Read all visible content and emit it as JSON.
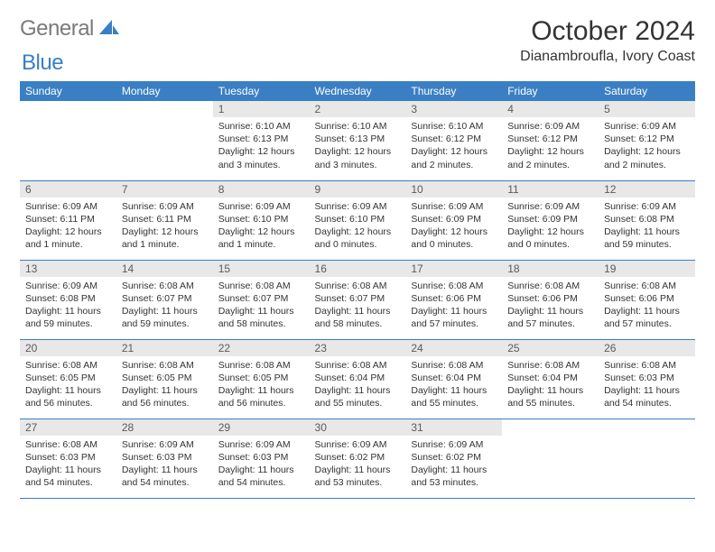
{
  "logo": {
    "text1": "General",
    "text2": "Blue"
  },
  "title": "October 2024",
  "location": "Dianambroufla, Ivory Coast",
  "day_headers": [
    "Sunday",
    "Monday",
    "Tuesday",
    "Wednesday",
    "Thursday",
    "Friday",
    "Saturday"
  ],
  "colors": {
    "header_bg": "#3a7fc4",
    "daynum_bg": "#e8e8e8",
    "rule": "#3a7fc4",
    "text": "#333333",
    "logo_gray": "#7a7a7a",
    "logo_blue": "#3a7fc4"
  },
  "weeks": [
    [
      {
        "n": "",
        "sunrise": "",
        "sunset": "",
        "daylight": ""
      },
      {
        "n": "",
        "sunrise": "",
        "sunset": "",
        "daylight": ""
      },
      {
        "n": "1",
        "sunrise": "Sunrise: 6:10 AM",
        "sunset": "Sunset: 6:13 PM",
        "daylight": "Daylight: 12 hours and 3 minutes."
      },
      {
        "n": "2",
        "sunrise": "Sunrise: 6:10 AM",
        "sunset": "Sunset: 6:13 PM",
        "daylight": "Daylight: 12 hours and 3 minutes."
      },
      {
        "n": "3",
        "sunrise": "Sunrise: 6:10 AM",
        "sunset": "Sunset: 6:12 PM",
        "daylight": "Daylight: 12 hours and 2 minutes."
      },
      {
        "n": "4",
        "sunrise": "Sunrise: 6:09 AM",
        "sunset": "Sunset: 6:12 PM",
        "daylight": "Daylight: 12 hours and 2 minutes."
      },
      {
        "n": "5",
        "sunrise": "Sunrise: 6:09 AM",
        "sunset": "Sunset: 6:12 PM",
        "daylight": "Daylight: 12 hours and 2 minutes."
      }
    ],
    [
      {
        "n": "6",
        "sunrise": "Sunrise: 6:09 AM",
        "sunset": "Sunset: 6:11 PM",
        "daylight": "Daylight: 12 hours and 1 minute."
      },
      {
        "n": "7",
        "sunrise": "Sunrise: 6:09 AM",
        "sunset": "Sunset: 6:11 PM",
        "daylight": "Daylight: 12 hours and 1 minute."
      },
      {
        "n": "8",
        "sunrise": "Sunrise: 6:09 AM",
        "sunset": "Sunset: 6:10 PM",
        "daylight": "Daylight: 12 hours and 1 minute."
      },
      {
        "n": "9",
        "sunrise": "Sunrise: 6:09 AM",
        "sunset": "Sunset: 6:10 PM",
        "daylight": "Daylight: 12 hours and 0 minutes."
      },
      {
        "n": "10",
        "sunrise": "Sunrise: 6:09 AM",
        "sunset": "Sunset: 6:09 PM",
        "daylight": "Daylight: 12 hours and 0 minutes."
      },
      {
        "n": "11",
        "sunrise": "Sunrise: 6:09 AM",
        "sunset": "Sunset: 6:09 PM",
        "daylight": "Daylight: 12 hours and 0 minutes."
      },
      {
        "n": "12",
        "sunrise": "Sunrise: 6:09 AM",
        "sunset": "Sunset: 6:08 PM",
        "daylight": "Daylight: 11 hours and 59 minutes."
      }
    ],
    [
      {
        "n": "13",
        "sunrise": "Sunrise: 6:09 AM",
        "sunset": "Sunset: 6:08 PM",
        "daylight": "Daylight: 11 hours and 59 minutes."
      },
      {
        "n": "14",
        "sunrise": "Sunrise: 6:08 AM",
        "sunset": "Sunset: 6:07 PM",
        "daylight": "Daylight: 11 hours and 59 minutes."
      },
      {
        "n": "15",
        "sunrise": "Sunrise: 6:08 AM",
        "sunset": "Sunset: 6:07 PM",
        "daylight": "Daylight: 11 hours and 58 minutes."
      },
      {
        "n": "16",
        "sunrise": "Sunrise: 6:08 AM",
        "sunset": "Sunset: 6:07 PM",
        "daylight": "Daylight: 11 hours and 58 minutes."
      },
      {
        "n": "17",
        "sunrise": "Sunrise: 6:08 AM",
        "sunset": "Sunset: 6:06 PM",
        "daylight": "Daylight: 11 hours and 57 minutes."
      },
      {
        "n": "18",
        "sunrise": "Sunrise: 6:08 AM",
        "sunset": "Sunset: 6:06 PM",
        "daylight": "Daylight: 11 hours and 57 minutes."
      },
      {
        "n": "19",
        "sunrise": "Sunrise: 6:08 AM",
        "sunset": "Sunset: 6:06 PM",
        "daylight": "Daylight: 11 hours and 57 minutes."
      }
    ],
    [
      {
        "n": "20",
        "sunrise": "Sunrise: 6:08 AM",
        "sunset": "Sunset: 6:05 PM",
        "daylight": "Daylight: 11 hours and 56 minutes."
      },
      {
        "n": "21",
        "sunrise": "Sunrise: 6:08 AM",
        "sunset": "Sunset: 6:05 PM",
        "daylight": "Daylight: 11 hours and 56 minutes."
      },
      {
        "n": "22",
        "sunrise": "Sunrise: 6:08 AM",
        "sunset": "Sunset: 6:05 PM",
        "daylight": "Daylight: 11 hours and 56 minutes."
      },
      {
        "n": "23",
        "sunrise": "Sunrise: 6:08 AM",
        "sunset": "Sunset: 6:04 PM",
        "daylight": "Daylight: 11 hours and 55 minutes."
      },
      {
        "n": "24",
        "sunrise": "Sunrise: 6:08 AM",
        "sunset": "Sunset: 6:04 PM",
        "daylight": "Daylight: 11 hours and 55 minutes."
      },
      {
        "n": "25",
        "sunrise": "Sunrise: 6:08 AM",
        "sunset": "Sunset: 6:04 PM",
        "daylight": "Daylight: 11 hours and 55 minutes."
      },
      {
        "n": "26",
        "sunrise": "Sunrise: 6:08 AM",
        "sunset": "Sunset: 6:03 PM",
        "daylight": "Daylight: 11 hours and 54 minutes."
      }
    ],
    [
      {
        "n": "27",
        "sunrise": "Sunrise: 6:08 AM",
        "sunset": "Sunset: 6:03 PM",
        "daylight": "Daylight: 11 hours and 54 minutes."
      },
      {
        "n": "28",
        "sunrise": "Sunrise: 6:09 AM",
        "sunset": "Sunset: 6:03 PM",
        "daylight": "Daylight: 11 hours and 54 minutes."
      },
      {
        "n": "29",
        "sunrise": "Sunrise: 6:09 AM",
        "sunset": "Sunset: 6:03 PM",
        "daylight": "Daylight: 11 hours and 54 minutes."
      },
      {
        "n": "30",
        "sunrise": "Sunrise: 6:09 AM",
        "sunset": "Sunset: 6:02 PM",
        "daylight": "Daylight: 11 hours and 53 minutes."
      },
      {
        "n": "31",
        "sunrise": "Sunrise: 6:09 AM",
        "sunset": "Sunset: 6:02 PM",
        "daylight": "Daylight: 11 hours and 53 minutes."
      },
      {
        "n": "",
        "sunrise": "",
        "sunset": "",
        "daylight": ""
      },
      {
        "n": "",
        "sunrise": "",
        "sunset": "",
        "daylight": ""
      }
    ]
  ]
}
